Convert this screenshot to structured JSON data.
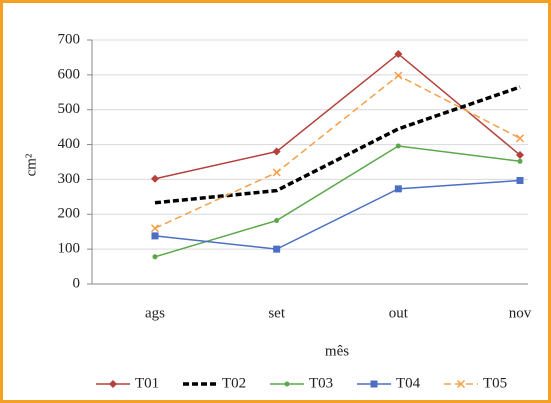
{
  "chart_data": {
    "type": "line",
    "y_label": "cm²",
    "x_label": "mês",
    "categories": [
      "ags",
      "set",
      "out",
      "nov"
    ],
    "ylim": [
      0,
      700
    ],
    "yticks": [
      0,
      100,
      200,
      300,
      400,
      500,
      600,
      700
    ],
    "grid": true,
    "legend": "bottom",
    "series": [
      {
        "name": "T01",
        "color": "#b5403c",
        "marker": "diamond",
        "linestyle": "solid",
        "linewidth": 1.5,
        "values": [
          302,
          380,
          660,
          370
        ]
      },
      {
        "name": "T02",
        "color": "#000000",
        "marker": "none",
        "linestyle": "dashed",
        "linewidth": 3.5,
        "values": [
          233,
          268,
          445,
          565
        ]
      },
      {
        "name": "T03",
        "color": "#5ba84a",
        "marker": "dot",
        "linestyle": "solid",
        "linewidth": 1.5,
        "values": [
          78,
          182,
          396,
          352
        ]
      },
      {
        "name": "T04",
        "color": "#4a6fc4",
        "marker": "square",
        "linestyle": "solid",
        "linewidth": 1.5,
        "values": [
          138,
          100,
          273,
          297
        ]
      },
      {
        "name": "T05",
        "color": "#f5a04a",
        "marker": "x",
        "linestyle": "dashed",
        "linewidth": 1.5,
        "values": [
          160,
          320,
          598,
          418
        ]
      }
    ]
  }
}
